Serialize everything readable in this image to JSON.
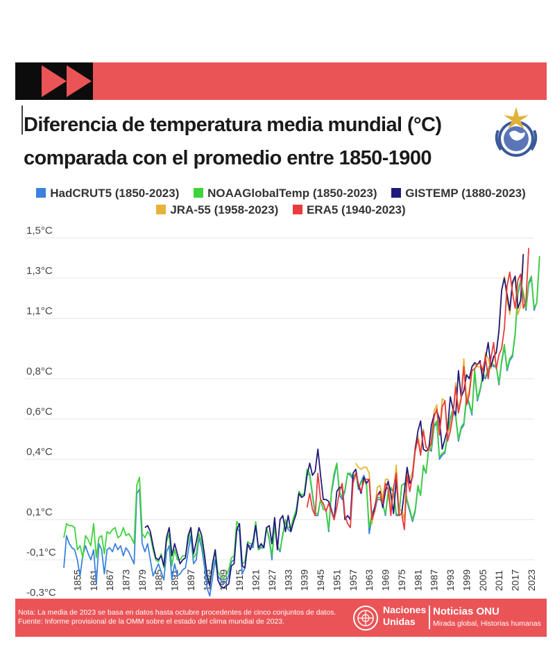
{
  "title_line1": "Diferencia de temperatura media mundial (°C)",
  "title_line2": "comparada con el promedio entre 1850-1900",
  "footer": {
    "note": "Nota: La media de 2023 se basa en datos hasta octubre procedentes de cinco conjuntos de datos.",
    "source": "Fuente: Informe provisional de la OMM sobre el estado del clima mundial de 2023.",
    "un_name_1": "Naciones",
    "un_name_2": "Unidas",
    "brand_title": "Noticias ONU",
    "brand_sub": "Mirada global, Historias humanas"
  },
  "colors": {
    "band": "#eb5457",
    "arrows": "#eb5457",
    "grid": "#e4e4e4"
  },
  "icons": [
    "fast-forward-icon",
    "wmo-emblem-icon",
    "un-emblem-icon"
  ],
  "chart_data": {
    "type": "line",
    "ytick_labels": [
      "1,5°C",
      "1,3°C",
      "1,1°C",
      "0,8°C",
      "0,6°C",
      "0,4°C",
      "0,1°C",
      "-0,1°C",
      "-0,3°C"
    ],
    "ytick_values": [
      1.5,
      1.3,
      1.1,
      0.8,
      0.6,
      0.4,
      0.1,
      -0.1,
      -0.3
    ],
    "ylim": [
      -0.3,
      1.5
    ],
    "xlim": [
      1850,
      2023
    ],
    "xticks": [
      1855,
      1861,
      1867,
      1873,
      1879,
      1885,
      1891,
      1897,
      1903,
      1909,
      1915,
      1921,
      1927,
      1933,
      1939,
      1945,
      1951,
      1957,
      1963,
      1969,
      1975,
      1981,
      1987,
      1993,
      1999,
      2005,
      2011,
      2017,
      2023
    ],
    "grid": true,
    "legend_position": "top",
    "series": [
      {
        "name": "HadCRUT5 (1850-2023)",
        "color": "#3b82dd",
        "start": 1850,
        "values": [
          -0.14,
          0.02,
          -0.02,
          -0.04,
          -0.05,
          -0.1,
          -0.18,
          -0.08,
          -0.03,
          -0.07,
          -0.1,
          -0.05,
          -0.22,
          -0.02,
          -0.05,
          -0.17,
          -0.05,
          -0.04,
          -0.06,
          -0.02,
          -0.05,
          -0.03,
          -0.08,
          -0.04,
          -0.06,
          -0.09,
          -0.12,
          0.23,
          0.25,
          -0.02,
          -0.06,
          -0.02,
          -0.1,
          -0.18,
          -0.15,
          -0.12,
          -0.16,
          -0.2,
          -0.06,
          -0.03,
          -0.2,
          -0.12,
          -0.18,
          -0.17,
          -0.15,
          -0.14,
          -0.06,
          0.02,
          -0.12,
          -0.1,
          0.01,
          -0.04,
          -0.13,
          -0.24,
          -0.28,
          -0.19,
          -0.1,
          -0.18,
          -0.2,
          -0.22,
          -0.21,
          -0.18,
          -0.11,
          -0.1,
          0.06,
          0.04,
          -0.17,
          -0.14,
          -0.03,
          -0.03,
          -0.04,
          0.08,
          -0.05,
          -0.04,
          -0.04,
          0.06,
          0.0,
          -0.1,
          0.08,
          -0.03,
          -0.06,
          0.03,
          0.09,
          0.05,
          0.04,
          0.1,
          0.15,
          0.24,
          0.22,
          0.23,
          0.33,
          0.32,
          0.22,
          0.12,
          0.12,
          0.2,
          0.15,
          0.15,
          0.04,
          0.23,
          0.31,
          0.38,
          0.22,
          0.2,
          0.24,
          0.33,
          0.32,
          0.3,
          0.33,
          0.25,
          0.29,
          0.32,
          0.28,
          0.03,
          0.11,
          0.14,
          0.2,
          0.2,
          0.18,
          0.12,
          0.23,
          0.25,
          0.24,
          0.12,
          0.12,
          0.27,
          0.28,
          0.19,
          0.14,
          0.09,
          0.14,
          0.26,
          0.22,
          0.36,
          0.33,
          0.45,
          0.44,
          0.56,
          0.58,
          0.4,
          0.42,
          0.43,
          0.52,
          0.6,
          0.64,
          0.61,
          0.49,
          0.55,
          0.57,
          0.7,
          0.67,
          0.62,
          0.83,
          0.69,
          0.74,
          0.81,
          0.8,
          0.84,
          0.88,
          0.86,
          0.86,
          0.77,
          0.88,
          0.96,
          0.84,
          0.89,
          0.91,
          1.02,
          1.22,
          1.28,
          1.22,
          1.14,
          1.27,
          1.3,
          1.14,
          1.18,
          1.4
        ]
      },
      {
        "name": "NOAAGlobalTemp (1850-2023)",
        "color": "#3fd23b",
        "start": 1850,
        "values": [
          0.01,
          0.08,
          0.07,
          0.07,
          0.06,
          -0.05,
          -0.03,
          -0.09,
          0.02,
          0.0,
          -0.03,
          0.08,
          -0.09,
          0.01,
          0.02,
          -0.07,
          0.04,
          0.03,
          0.05,
          0.06,
          0.01,
          0.02,
          0.06,
          0.02,
          0.03,
          0.01,
          -0.02,
          0.27,
          0.31,
          0.03,
          0.01,
          0.04,
          0.02,
          -0.05,
          -0.1,
          -0.11,
          -0.07,
          -0.14,
          -0.01,
          0.03,
          -0.13,
          -0.05,
          -0.1,
          -0.1,
          -0.08,
          -0.08,
          -0.01,
          0.06,
          -0.09,
          -0.07,
          0.03,
          -0.01,
          -0.09,
          -0.17,
          -0.22,
          -0.14,
          -0.05,
          -0.16,
          -0.18,
          -0.19,
          -0.18,
          -0.15,
          -0.09,
          -0.08,
          0.09,
          0.07,
          -0.12,
          -0.11,
          -0.01,
          -0.02,
          -0.02,
          0.09,
          -0.05,
          -0.03,
          -0.03,
          0.06,
          0.01,
          -0.08,
          0.07,
          -0.04,
          -0.05,
          0.02,
          0.1,
          0.06,
          0.06,
          0.11,
          0.15,
          0.24,
          0.22,
          0.23,
          0.35,
          0.33,
          0.23,
          0.13,
          0.13,
          0.2,
          0.15,
          0.15,
          0.05,
          0.24,
          0.33,
          0.38,
          0.24,
          0.21,
          0.25,
          0.33,
          0.33,
          0.31,
          0.33,
          0.26,
          0.28,
          0.31,
          0.27,
          0.06,
          0.13,
          0.16,
          0.21,
          0.21,
          0.17,
          0.13,
          0.24,
          0.26,
          0.24,
          0.13,
          0.12,
          0.27,
          0.28,
          0.2,
          0.15,
          0.1,
          0.15,
          0.27,
          0.22,
          0.37,
          0.33,
          0.46,
          0.45,
          0.57,
          0.59,
          0.41,
          0.43,
          0.44,
          0.53,
          0.61,
          0.65,
          0.62,
          0.5,
          0.56,
          0.58,
          0.72,
          0.68,
          0.63,
          0.85,
          0.7,
          0.75,
          0.82,
          0.81,
          0.85,
          0.88,
          0.87,
          0.86,
          0.78,
          0.89,
          0.97,
          0.85,
          0.9,
          0.92,
          1.03,
          1.23,
          1.29,
          1.23,
          1.15,
          1.28,
          1.31,
          1.15,
          1.18,
          1.41
        ]
      },
      {
        "name": "GISTEMP (1880-2023)",
        "color": "#201a7a",
        "start": 1880,
        "values": [
          0.06,
          0.07,
          0.04,
          -0.03,
          -0.09,
          -0.1,
          -0.08,
          -0.13,
          0.01,
          0.06,
          -0.08,
          -0.02,
          -0.07,
          -0.12,
          -0.1,
          -0.09,
          0.02,
          0.06,
          -0.07,
          -0.01,
          0.06,
          0.02,
          -0.07,
          -0.18,
          -0.23,
          -0.12,
          -0.05,
          -0.2,
          -0.23,
          -0.24,
          -0.23,
          -0.22,
          -0.13,
          -0.12,
          0.05,
          0.08,
          -0.13,
          -0.14,
          -0.02,
          -0.05,
          -0.01,
          0.07,
          -0.04,
          -0.02,
          -0.04,
          0.06,
          0.07,
          -0.02,
          0.11,
          -0.05,
          0.1,
          0.12,
          0.04,
          0.12,
          0.04,
          0.09,
          0.13,
          0.23,
          0.21,
          0.22,
          0.32,
          0.38,
          0.32,
          0.34,
          0.45,
          0.32,
          0.2,
          0.2,
          0.19,
          0.15,
          0.1,
          0.24,
          0.26,
          0.26,
          0.1,
          0.12,
          0.1,
          0.33,
          0.35,
          0.27,
          0.23,
          0.31,
          0.28,
          0.3,
          0.1,
          0.16,
          0.22,
          0.24,
          0.16,
          0.24,
          0.29,
          0.23,
          0.13,
          0.3,
          0.12,
          0.13,
          0.24,
          0.36,
          0.28,
          0.31,
          0.45,
          0.54,
          0.59,
          0.45,
          0.44,
          0.45,
          0.57,
          0.62,
          0.64,
          0.6,
          0.45,
          0.5,
          0.55,
          0.71,
          0.65,
          0.62,
          0.84,
          0.71,
          0.74,
          0.82,
          0.8,
          0.86,
          0.88,
          0.87,
          0.89,
          0.79,
          0.9,
          0.98,
          0.86,
          0.91,
          0.93,
          1.04,
          1.24,
          1.3,
          1.22,
          1.14,
          1.28,
          1.31,
          1.15,
          1.19,
          1.42
        ]
      },
      {
        "name": "JRA-55 (1958-2023)",
        "color": "#e5b33a",
        "start": 1958,
        "values": [
          0.38,
          0.36,
          0.35,
          0.36,
          0.36,
          0.33,
          0.08,
          0.15,
          0.26,
          0.27,
          0.2,
          0.3,
          0.3,
          0.16,
          0.24,
          0.37,
          0.14,
          0.15,
          0.1,
          0.35,
          0.3,
          0.34,
          0.46,
          0.52,
          0.43,
          0.55,
          0.46,
          0.44,
          0.5,
          0.64,
          0.67,
          0.54,
          0.7,
          0.69,
          0.53,
          0.56,
          0.63,
          0.78,
          0.65,
          0.71,
          0.9,
          0.7,
          0.74,
          0.86,
          0.87,
          0.86,
          0.86,
          0.82,
          0.93,
          0.9,
          0.85,
          0.9,
          0.93,
          1.03,
          1.24,
          1.31,
          1.19,
          1.12,
          1.27,
          1.3,
          1.12,
          1.16,
          1.39
        ]
      },
      {
        "name": "ERA5 (1940-2023)",
        "color": "#ea3b3d",
        "start": 1940,
        "values": [
          0.16,
          0.23,
          0.15,
          0.12,
          0.33,
          0.2,
          0.18,
          0.14,
          0.18,
          0.14,
          0.1,
          0.16,
          0.24,
          0.28,
          0.12,
          0.08,
          0.06,
          0.28,
          0.33,
          0.28,
          0.24,
          0.29,
          0.3,
          0.3,
          0.1,
          0.14,
          0.22,
          0.23,
          0.18,
          0.28,
          0.25,
          0.12,
          0.26,
          0.33,
          0.12,
          0.13,
          0.05,
          0.32,
          0.24,
          0.32,
          0.44,
          0.5,
          0.42,
          0.54,
          0.46,
          0.45,
          0.48,
          0.61,
          0.65,
          0.52,
          0.66,
          0.69,
          0.49,
          0.54,
          0.62,
          0.76,
          0.63,
          0.7,
          0.86,
          0.67,
          0.72,
          0.84,
          0.85,
          0.87,
          0.88,
          0.84,
          0.91,
          0.8,
          0.9,
          0.98,
          0.85,
          0.92,
          0.95,
          1.05,
          1.26,
          1.33,
          1.23,
          1.15,
          1.29,
          1.32,
          1.15,
          1.19,
          1.45
        ]
      }
    ]
  }
}
